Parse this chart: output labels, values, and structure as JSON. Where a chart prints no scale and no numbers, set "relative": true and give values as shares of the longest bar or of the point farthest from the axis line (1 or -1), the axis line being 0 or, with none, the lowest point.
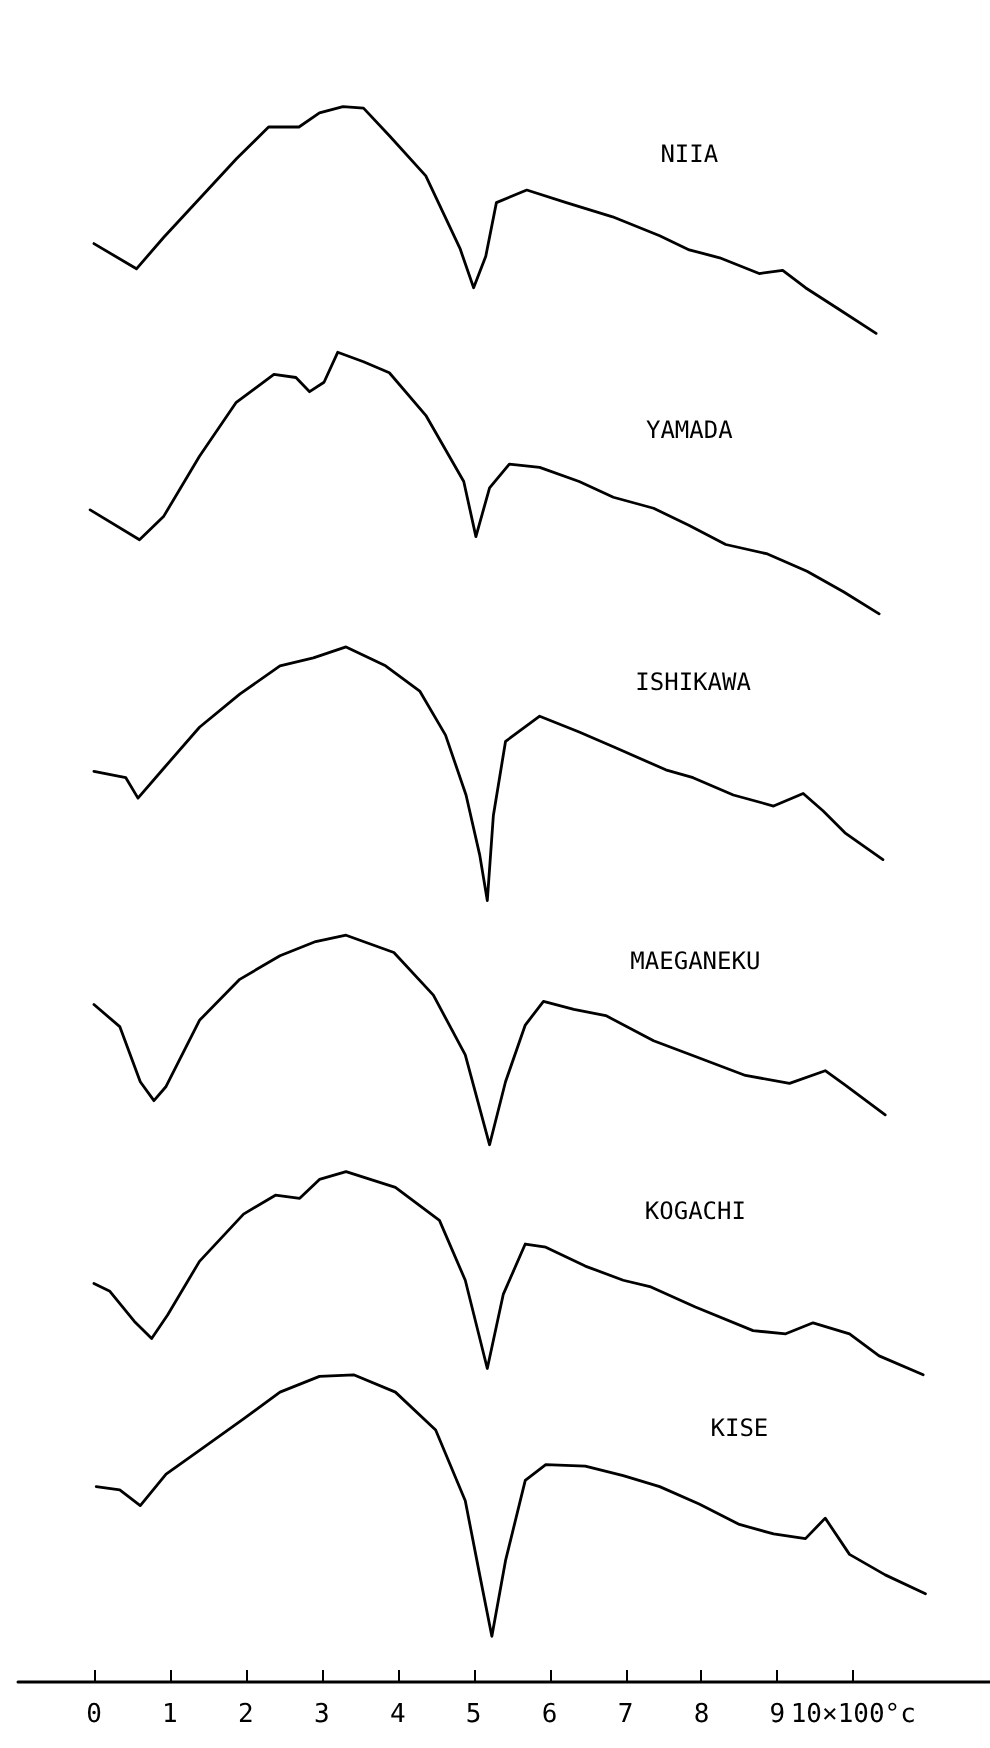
{
  "chart_data": {
    "type": "line",
    "relative": true,
    "xlim": [
      -1,
      11.8
    ],
    "xticks": [
      0,
      1,
      2,
      3,
      4,
      5,
      6,
      7,
      8,
      9,
      {
        "value": 10,
        "label": "10×100°c"
      }
    ],
    "grid": false,
    "legend": false,
    "marker": "none",
    "line_style": "solid",
    "series": [
      {
        "name": "NIIA",
        "color": "#000000",
        "x": [
          0,
          0.56,
          0.92,
          1.88,
          2.3,
          2.7,
          2.97,
          3.28,
          3.55,
          3.9,
          4.37,
          4.82,
          5.0,
          5.16,
          5.3,
          5.7,
          6.22,
          6.83,
          7.45,
          7.84,
          8.24,
          8.76,
          9.07,
          9.37,
          9.82,
          10.3
        ],
        "values": [
          0.913,
          0.897,
          0.917,
          0.967,
          0.987,
          0.987,
          0.996,
          1.0,
          0.999,
          0.981,
          0.956,
          0.91,
          0.885,
          0.905,
          0.939,
          0.947,
          0.939,
          0.93,
          0.918,
          0.909,
          0.904,
          0.894,
          0.896,
          0.885,
          0.871,
          0.856
        ]
      },
      {
        "name": "YAMADA",
        "color": "#000000",
        "x": [
          -0.05,
          0.6,
          0.92,
          1.39,
          1.87,
          2.37,
          2.66,
          2.84,
          3.03,
          3.21,
          3.55,
          3.89,
          4.37,
          4.87,
          5.03,
          5.21,
          5.47,
          5.87,
          6.39,
          6.84,
          7.37,
          7.84,
          8.32,
          8.87,
          9.39,
          9.87,
          10.34
        ],
        "values": [
          0.744,
          0.725,
          0.74,
          0.778,
          0.812,
          0.83,
          0.828,
          0.819,
          0.825,
          0.844,
          0.838,
          0.831,
          0.804,
          0.762,
          0.727,
          0.758,
          0.773,
          0.771,
          0.762,
          0.752,
          0.745,
          0.734,
          0.722,
          0.716,
          0.705,
          0.692,
          0.678
        ]
      },
      {
        "name": "ISHIKAWA",
        "color": "#000000",
        "x": [
          0,
          0.42,
          0.58,
          0.92,
          1.39,
          1.92,
          2.45,
          2.89,
          3.32,
          3.84,
          4.29,
          4.63,
          4.9,
          5.08,
          5.18,
          5.26,
          5.42,
          5.87,
          6.39,
          6.87,
          7.53,
          7.89,
          8.42,
          8.95,
          9.34,
          9.6,
          9.89,
          10.39
        ],
        "values": [
          0.578,
          0.574,
          0.561,
          0.58,
          0.606,
          0.627,
          0.645,
          0.65,
          0.657,
          0.645,
          0.629,
          0.601,
          0.563,
          0.525,
          0.496,
          0.55,
          0.597,
          0.613,
          0.603,
          0.593,
          0.579,
          0.574,
          0.563,
          0.556,
          0.564,
          0.553,
          0.539,
          0.522
        ]
      },
      {
        "name": "MAEGANEKU",
        "color": "#000000",
        "x": [
          0,
          0.34,
          0.61,
          0.79,
          0.95,
          1.39,
          1.92,
          2.45,
          2.92,
          3.32,
          3.95,
          4.47,
          4.89,
          5.21,
          5.42,
          5.68,
          5.92,
          6.32,
          6.74,
          7.37,
          7.92,
          8.58,
          9.16,
          9.63,
          9.89,
          10.42
        ],
        "values": [
          0.43,
          0.416,
          0.381,
          0.369,
          0.378,
          0.42,
          0.446,
          0.461,
          0.47,
          0.474,
          0.463,
          0.436,
          0.398,
          0.341,
          0.381,
          0.417,
          0.432,
          0.427,
          0.423,
          0.407,
          0.397,
          0.385,
          0.38,
          0.388,
          0.379,
          0.36
        ]
      },
      {
        "name": "KOGACHI",
        "color": "#000000",
        "x": [
          0,
          0.21,
          0.53,
          0.76,
          0.97,
          1.39,
          1.97,
          2.39,
          2.71,
          2.97,
          3.32,
          3.97,
          4.55,
          4.89,
          5.18,
          5.39,
          5.68,
          5.95,
          6.47,
          6.97,
          7.32,
          7.92,
          8.68,
          9.11,
          9.47,
          9.95,
          10.34,
          10.92
        ],
        "values": [
          0.253,
          0.248,
          0.229,
          0.218,
          0.233,
          0.267,
          0.297,
          0.309,
          0.307,
          0.319,
          0.324,
          0.314,
          0.293,
          0.255,
          0.199,
          0.246,
          0.278,
          0.276,
          0.264,
          0.255,
          0.251,
          0.238,
          0.223,
          0.221,
          0.228,
          0.221,
          0.207,
          0.195
        ]
      },
      {
        "name": "KISE",
        "color": "#000000",
        "x": [
          0.03,
          0.34,
          0.61,
          0.95,
          1.39,
          1.97,
          2.45,
          2.97,
          3.42,
          3.97,
          4.5,
          4.89,
          5.08,
          5.24,
          5.42,
          5.68,
          5.95,
          6.47,
          6.97,
          7.45,
          7.97,
          8.5,
          8.95,
          9.37,
          9.63,
          9.95,
          10.42,
          10.95
        ],
        "values": [
          0.124,
          0.122,
          0.112,
          0.132,
          0.147,
          0.167,
          0.184,
          0.194,
          0.195,
          0.184,
          0.16,
          0.115,
          0.068,
          0.029,
          0.077,
          0.128,
          0.138,
          0.137,
          0.131,
          0.124,
          0.113,
          0.1,
          0.094,
          0.091,
          0.104,
          0.081,
          0.068,
          0.056
        ]
      }
    ]
  }
}
